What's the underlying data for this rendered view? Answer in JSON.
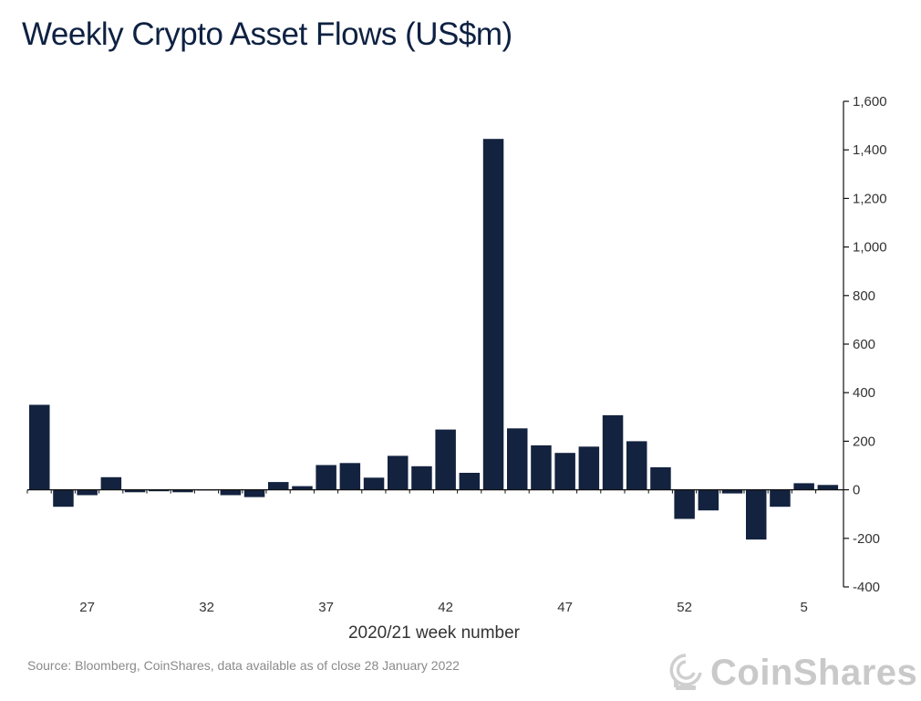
{
  "brand": {
    "name": "CoinShares",
    "text_color": "#c9c9c9",
    "bar_color": "#13223f"
  },
  "chart_data": {
    "type": "bar",
    "title": "Weekly Crypto Asset Flows (US$m)",
    "xlabel": "2020/21 week number",
    "ylabel": "",
    "ylim": [
      -400,
      1600
    ],
    "yticks": [
      -400,
      -200,
      0,
      200,
      400,
      600,
      800,
      1000,
      1200,
      1400,
      1600
    ],
    "ytick_labels": [
      "-400",
      "-200",
      "0",
      "200",
      "400",
      "600",
      "800",
      "1,000",
      "1,200",
      "1,400",
      "1,600"
    ],
    "y_axis_position": "right",
    "grid": false,
    "categories": [
      "25",
      "26",
      "27",
      "28",
      "29",
      "30",
      "31",
      "32",
      "33",
      "34",
      "35",
      "36",
      "37",
      "38",
      "39",
      "40",
      "41",
      "42",
      "43",
      "44",
      "45",
      "46",
      "47",
      "48",
      "49",
      "50",
      "51",
      "52",
      "1",
      "2",
      "3",
      "4",
      "5",
      "6"
    ],
    "xtick_labels": [
      {
        "category": "27",
        "label": "27"
      },
      {
        "category": "32",
        "label": "32"
      },
      {
        "category": "37",
        "label": "37"
      },
      {
        "category": "42",
        "label": "42"
      },
      {
        "category": "47",
        "label": "47"
      },
      {
        "category": "52",
        "label": "52"
      },
      {
        "category": "5",
        "label": "5"
      }
    ],
    "values": [
      350,
      -70,
      -22,
      52,
      -10,
      -6,
      -10,
      0,
      -22,
      -30,
      32,
      15,
      102,
      110,
      50,
      140,
      97,
      248,
      70,
      1445,
      253,
      183,
      152,
      178,
      307,
      200,
      93,
      -120,
      -85,
      -15,
      -205,
      -70,
      27,
      20
    ]
  },
  "source_text": "Source: Bloomberg, CoinShares, data available as of close 28 January 2022"
}
